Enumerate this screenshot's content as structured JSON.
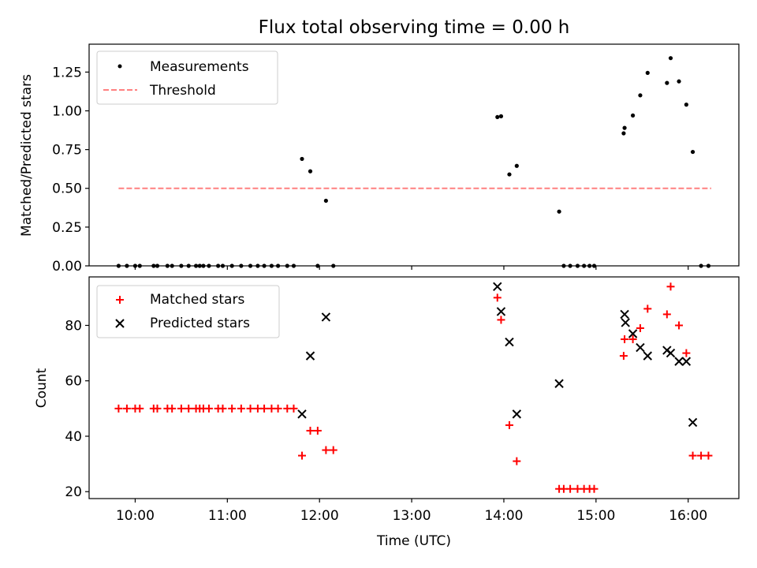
{
  "figure_title": "Flux total observing time = 0.00 h",
  "colors": {
    "measure": "#000000",
    "threshold": "#ff8080",
    "matched": "#ff0000",
    "predicted": "#000000",
    "axis": "#000000"
  },
  "chart_data": [
    {
      "type": "scatter",
      "title": "Flux total observing time = 0.00 h",
      "xlabel": "",
      "ylabel": "Matched/Predicted stars",
      "xlim_hours": [
        9.5,
        16.55
      ],
      "ylim": [
        0,
        1.43
      ],
      "yticks": [
        0.0,
        0.25,
        0.5,
        0.75,
        1.0,
        1.25
      ],
      "ytick_labels": [
        "0.00",
        "0.25",
        "0.50",
        "0.75",
        "1.00",
        "1.25"
      ],
      "legend": [
        "Measurements",
        "Threshold"
      ],
      "legend_position": "top-left",
      "threshold": {
        "name": "Threshold",
        "y": 0.5,
        "x_range_hours": [
          9.82,
          16.25
        ]
      },
      "series": [
        {
          "name": "Measurements",
          "marker": "dot",
          "x_hours": [
            9.82,
            9.91,
            10.0,
            10.05,
            10.2,
            10.24,
            10.35,
            10.4,
            10.5,
            10.58,
            10.66,
            10.7,
            10.74,
            10.8,
            10.9,
            10.95,
            11.05,
            11.15,
            11.25,
            11.33,
            11.4,
            11.48,
            11.55,
            11.65,
            11.72,
            11.81,
            11.9,
            11.98,
            12.07,
            12.15,
            13.93,
            13.97,
            14.06,
            14.14,
            14.6,
            14.65,
            14.72,
            14.8,
            14.87,
            14.93,
            14.98,
            15.3,
            15.31,
            15.4,
            15.48,
            15.56,
            15.77,
            15.81,
            15.9,
            15.98,
            16.05,
            16.14,
            16.22
          ],
          "y": [
            0,
            0,
            0,
            0,
            0,
            0,
            0,
            0,
            0,
            0,
            0,
            0,
            0,
            0,
            0,
            0,
            0,
            0,
            0,
            0,
            0,
            0,
            0,
            0,
            0,
            0.69,
            0.61,
            0,
            0.42,
            0,
            0.96,
            0.965,
            0.59,
            0.645,
            0.35,
            0,
            0,
            0,
            0,
            0,
            0,
            0.855,
            0.89,
            0.97,
            1.1,
            1.245,
            1.18,
            1.34,
            1.19,
            1.04,
            0.735,
            0,
            0
          ]
        }
      ]
    },
    {
      "type": "scatter",
      "title": "",
      "xlabel": "Time (UTC)",
      "ylabel": "Count",
      "xlim_hours": [
        9.5,
        16.55
      ],
      "ylim": [
        17.5,
        97.5
      ],
      "yticks": [
        20,
        40,
        60,
        80
      ],
      "ytick_labels": [
        "20",
        "40",
        "60",
        "80"
      ],
      "xticks_hours": [
        10,
        11,
        12,
        13,
        14,
        15,
        16
      ],
      "xtick_labels": [
        "10:00",
        "11:00",
        "12:00",
        "13:00",
        "14:00",
        "15:00",
        "16:00"
      ],
      "legend": [
        "Matched stars",
        "Predicted stars"
      ],
      "legend_position": "top-left",
      "series": [
        {
          "name": "Matched stars",
          "marker": "plus",
          "x_hours": [
            9.82,
            9.91,
            10.0,
            10.05,
            10.2,
            10.24,
            10.35,
            10.4,
            10.5,
            10.58,
            10.66,
            10.7,
            10.74,
            10.8,
            10.9,
            10.95,
            11.05,
            11.15,
            11.25,
            11.33,
            11.4,
            11.48,
            11.55,
            11.65,
            11.72,
            11.81,
            11.9,
            11.98,
            12.07,
            12.15,
            13.93,
            13.97,
            14.06,
            14.14,
            14.6,
            14.65,
            14.72,
            14.8,
            14.87,
            14.93,
            14.98,
            15.3,
            15.31,
            15.4,
            15.48,
            15.56,
            15.77,
            15.81,
            15.9,
            15.98,
            16.05,
            16.14,
            16.22
          ],
          "y": [
            50,
            50,
            50,
            50,
            50,
            50,
            50,
            50,
            50,
            50,
            50,
            50,
            50,
            50,
            50,
            50,
            50,
            50,
            50,
            50,
            50,
            50,
            50,
            50,
            50,
            33,
            42,
            42,
            35,
            35,
            90,
            82,
            44,
            31,
            21,
            21,
            21,
            21,
            21,
            21,
            21,
            69,
            75,
            75,
            79,
            86,
            84,
            94,
            80,
            70,
            33,
            33,
            33
          ]
        },
        {
          "name": "Predicted stars",
          "marker": "x",
          "x_hours": [
            11.81,
            11.9,
            12.07,
            13.93,
            13.97,
            14.06,
            14.14,
            14.6,
            15.31,
            15.32,
            15.4,
            15.48,
            15.56,
            15.77,
            15.81,
            15.9,
            15.98,
            16.05
          ],
          "y": [
            48,
            69,
            83,
            94,
            85,
            74,
            48,
            59,
            84,
            81,
            77,
            72,
            69,
            71,
            70,
            67,
            67,
            45
          ]
        }
      ]
    }
  ]
}
